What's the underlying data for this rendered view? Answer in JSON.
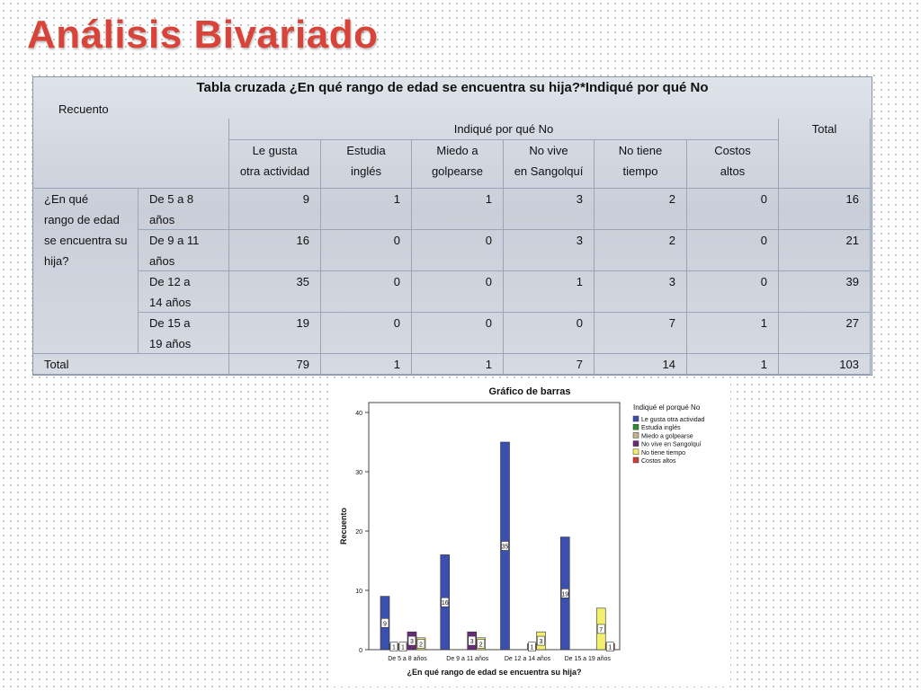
{
  "page_title": "Análisis Bivariado",
  "table": {
    "caption": "Tabla cruzada ¿En qué rango de edad se encuentra su hija?*Indiqué por qué No",
    "subtitle": "Recuento",
    "group_header": "Indiqué por qué No",
    "total_header": "Total",
    "columns": [
      [
        "Le gusta",
        "otra actividad"
      ],
      [
        "Estudia",
        "inglés"
      ],
      [
        "Miedo a",
        "golpearse"
      ],
      [
        "No vive",
        "en Sangolquí"
      ],
      [
        "No tiene",
        "tiempo"
      ],
      [
        "Costos",
        "altos"
      ]
    ],
    "row_var": [
      "¿En qué",
      "rango de edad",
      "se encuentra su",
      "hija?"
    ],
    "rows": [
      {
        "label": [
          "De 5 a 8",
          "años"
        ],
        "values": [
          9,
          1,
          1,
          3,
          2,
          0
        ],
        "total": 16
      },
      {
        "label": [
          "De 9 a 11",
          "años"
        ],
        "values": [
          16,
          0,
          0,
          3,
          2,
          0
        ],
        "total": 21
      },
      {
        "label": [
          "De 12 a",
          "14 años"
        ],
        "values": [
          35,
          0,
          0,
          1,
          3,
          0
        ],
        "total": 39
      },
      {
        "label": [
          "De 15 a",
          "19 años"
        ],
        "values": [
          19,
          0,
          0,
          0,
          7,
          1
        ],
        "total": 27
      }
    ],
    "total_row": {
      "label": "Total",
      "values": [
        79,
        1,
        1,
        7,
        14,
        1
      ],
      "total": 103
    }
  },
  "chart_data": {
    "type": "bar",
    "title": "Gráfico de barras",
    "xlabel": "¿En qué rango de edad se encuentra su hija?",
    "ylabel": "Recuento",
    "legend_title": "Indiqué el porqué No",
    "legend_position": "right",
    "ylim": [
      0,
      40
    ],
    "yticks": [
      0,
      10,
      20,
      30,
      40
    ],
    "categories": [
      "De 5 a 8 años",
      "De 9 a 11 años",
      "De 12 a 14 años",
      "De 15 a 19 años"
    ],
    "series": [
      {
        "name": "Le gusta otra actividad",
        "color": "#3a4fae",
        "values": [
          9,
          16,
          35,
          19
        ]
      },
      {
        "name": "Estudia inglés",
        "color": "#2e8b2e",
        "values": [
          1,
          0,
          0,
          0
        ]
      },
      {
        "name": "Miedo a golpearse",
        "color": "#c2b48a",
        "values": [
          1,
          0,
          0,
          0
        ]
      },
      {
        "name": "No vive en Sangolquí",
        "color": "#6a2a7a",
        "values": [
          3,
          3,
          1,
          0
        ]
      },
      {
        "name": "No tiene tiempo",
        "color": "#f2ee6e",
        "values": [
          2,
          2,
          3,
          7
        ]
      },
      {
        "name": "Costos altos",
        "color": "#d43a3a",
        "values": [
          0,
          0,
          0,
          1
        ]
      }
    ],
    "data_labels": [
      [
        "9",
        "1",
        "1",
        "3",
        "2",
        ""
      ],
      [
        "16",
        "",
        "",
        "3",
        "2",
        ""
      ],
      [
        "35",
        "",
        "",
        "1",
        "3",
        ""
      ],
      [
        "19",
        "",
        "",
        "",
        "7",
        "1"
      ]
    ]
  }
}
